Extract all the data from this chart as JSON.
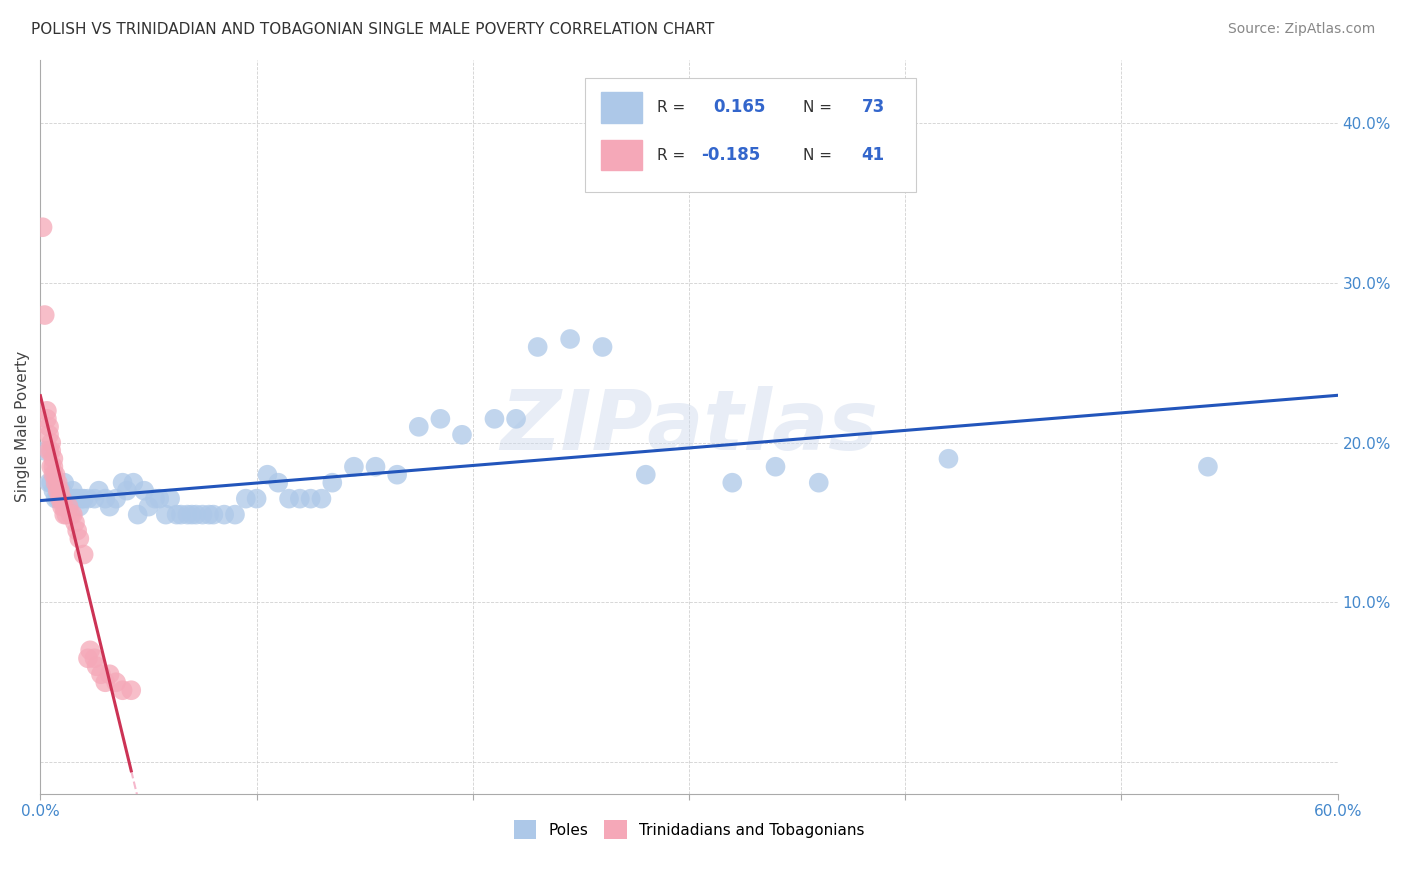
{
  "title": "POLISH VS TRINIDADIAN AND TOBAGONIAN SINGLE MALE POVERTY CORRELATION CHART",
  "source": "Source: ZipAtlas.com",
  "ylabel": "Single Male Poverty",
  "xlim": [
    0.0,
    0.6
  ],
  "ylim": [
    -0.02,
    0.44
  ],
  "yticks": [
    0.0,
    0.1,
    0.2,
    0.3,
    0.4
  ],
  "ytick_labels": [
    "",
    "10.0%",
    "20.0%",
    "30.0%",
    "40.0%"
  ],
  "xticks": [
    0.0,
    0.1,
    0.2,
    0.3,
    0.4,
    0.5,
    0.6
  ],
  "xtick_labels": [
    "0.0%",
    "",
    "",
    "",
    "",
    "",
    "60.0%"
  ],
  "poles_R": 0.165,
  "poles_N": 73,
  "tnt_R": -0.185,
  "tnt_N": 41,
  "poles_color": "#adc8e8",
  "tnt_color": "#f5a8b8",
  "poles_line_color": "#2255bb",
  "tnt_line_solid_color": "#cc3355",
  "tnt_line_dash_color": "#f5b8cc",
  "watermark": "ZIPatlas",
  "poles_scatter": [
    [
      0.002,
      0.195
    ],
    [
      0.004,
      0.175
    ],
    [
      0.005,
      0.175
    ],
    [
      0.006,
      0.17
    ],
    [
      0.007,
      0.165
    ],
    [
      0.008,
      0.165
    ],
    [
      0.008,
      0.17
    ],
    [
      0.009,
      0.165
    ],
    [
      0.01,
      0.165
    ],
    [
      0.01,
      0.17
    ],
    [
      0.011,
      0.175
    ],
    [
      0.012,
      0.165
    ],
    [
      0.013,
      0.165
    ],
    [
      0.014,
      0.165
    ],
    [
      0.015,
      0.17
    ],
    [
      0.015,
      0.165
    ],
    [
      0.016,
      0.165
    ],
    [
      0.017,
      0.165
    ],
    [
      0.018,
      0.16
    ],
    [
      0.019,
      0.165
    ],
    [
      0.02,
      0.165
    ],
    [
      0.022,
      0.165
    ],
    [
      0.025,
      0.165
    ],
    [
      0.027,
      0.17
    ],
    [
      0.03,
      0.165
    ],
    [
      0.032,
      0.16
    ],
    [
      0.035,
      0.165
    ],
    [
      0.038,
      0.175
    ],
    [
      0.04,
      0.17
    ],
    [
      0.043,
      0.175
    ],
    [
      0.045,
      0.155
    ],
    [
      0.048,
      0.17
    ],
    [
      0.05,
      0.16
    ],
    [
      0.053,
      0.165
    ],
    [
      0.055,
      0.165
    ],
    [
      0.058,
      0.155
    ],
    [
      0.06,
      0.165
    ],
    [
      0.063,
      0.155
    ],
    [
      0.065,
      0.155
    ],
    [
      0.068,
      0.155
    ],
    [
      0.07,
      0.155
    ],
    [
      0.072,
      0.155
    ],
    [
      0.075,
      0.155
    ],
    [
      0.078,
      0.155
    ],
    [
      0.08,
      0.155
    ],
    [
      0.085,
      0.155
    ],
    [
      0.09,
      0.155
    ],
    [
      0.095,
      0.165
    ],
    [
      0.1,
      0.165
    ],
    [
      0.105,
      0.18
    ],
    [
      0.11,
      0.175
    ],
    [
      0.115,
      0.165
    ],
    [
      0.12,
      0.165
    ],
    [
      0.125,
      0.165
    ],
    [
      0.13,
      0.165
    ],
    [
      0.135,
      0.175
    ],
    [
      0.145,
      0.185
    ],
    [
      0.155,
      0.185
    ],
    [
      0.165,
      0.18
    ],
    [
      0.175,
      0.21
    ],
    [
      0.185,
      0.215
    ],
    [
      0.195,
      0.205
    ],
    [
      0.21,
      0.215
    ],
    [
      0.22,
      0.215
    ],
    [
      0.23,
      0.26
    ],
    [
      0.245,
      0.265
    ],
    [
      0.26,
      0.26
    ],
    [
      0.28,
      0.18
    ],
    [
      0.32,
      0.175
    ],
    [
      0.34,
      0.185
    ],
    [
      0.36,
      0.175
    ],
    [
      0.42,
      0.19
    ],
    [
      0.54,
      0.185
    ]
  ],
  "tnt_scatter": [
    [
      0.001,
      0.335
    ],
    [
      0.002,
      0.28
    ],
    [
      0.003,
      0.215
    ],
    [
      0.003,
      0.22
    ],
    [
      0.004,
      0.21
    ],
    [
      0.004,
      0.195
    ],
    [
      0.004,
      0.205
    ],
    [
      0.005,
      0.195
    ],
    [
      0.005,
      0.2
    ],
    [
      0.005,
      0.185
    ],
    [
      0.006,
      0.19
    ],
    [
      0.006,
      0.185
    ],
    [
      0.006,
      0.18
    ],
    [
      0.007,
      0.175
    ],
    [
      0.007,
      0.18
    ],
    [
      0.008,
      0.175
    ],
    [
      0.008,
      0.17
    ],
    [
      0.009,
      0.17
    ],
    [
      0.009,
      0.165
    ],
    [
      0.01,
      0.165
    ],
    [
      0.01,
      0.16
    ],
    [
      0.011,
      0.16
    ],
    [
      0.011,
      0.155
    ],
    [
      0.012,
      0.155
    ],
    [
      0.013,
      0.16
    ],
    [
      0.014,
      0.155
    ],
    [
      0.015,
      0.155
    ],
    [
      0.016,
      0.15
    ],
    [
      0.017,
      0.145
    ],
    [
      0.018,
      0.14
    ],
    [
      0.02,
      0.13
    ],
    [
      0.022,
      0.065
    ],
    [
      0.023,
      0.07
    ],
    [
      0.025,
      0.065
    ],
    [
      0.026,
      0.06
    ],
    [
      0.028,
      0.055
    ],
    [
      0.03,
      0.05
    ],
    [
      0.032,
      0.055
    ],
    [
      0.035,
      0.05
    ],
    [
      0.038,
      0.045
    ],
    [
      0.042,
      0.045
    ]
  ]
}
